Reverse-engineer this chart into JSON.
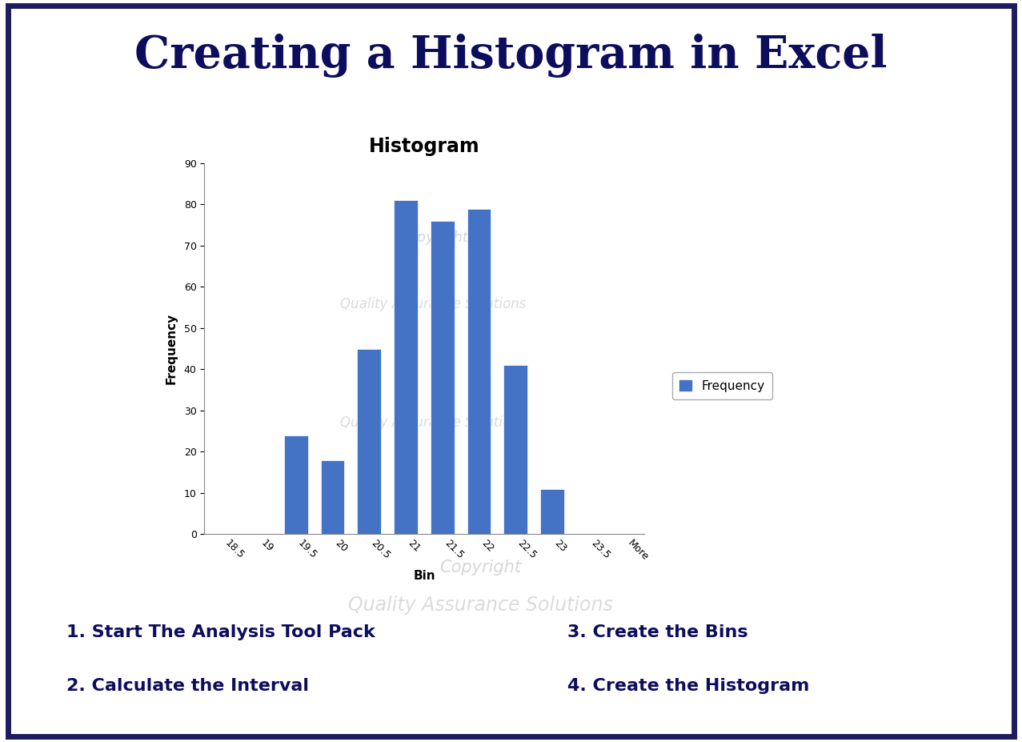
{
  "title": "Creating a Histogram in Excel",
  "chart_title": "Histogram",
  "xlabel": "Bin",
  "ylabel": "Frequency",
  "bins": [
    "18.5",
    "19",
    "19.5",
    "20",
    "20.5",
    "21",
    "21.5",
    "22",
    "22.5",
    "23",
    "23.5",
    "More"
  ],
  "frequencies": [
    0,
    0,
    24,
    18,
    45,
    81,
    76,
    79,
    41,
    11,
    0,
    0
  ],
  "bar_color": "#4472C4",
  "ylim": [
    0,
    90
  ],
  "yticks": [
    0,
    10,
    20,
    30,
    40,
    50,
    60,
    70,
    80,
    90
  ],
  "legend_label": "Frequency",
  "bg_color": "#FFFFFF",
  "border_color": "#1C1C5E",
  "step1": "1. Start The Analysis Tool Pack",
  "step2": "2. Calculate the Interval",
  "step3": "3. Create the Bins",
  "step4": "4. Create the Histogram",
  "title_color": "#0D0D5E",
  "steps_color": "#0D0D5E"
}
